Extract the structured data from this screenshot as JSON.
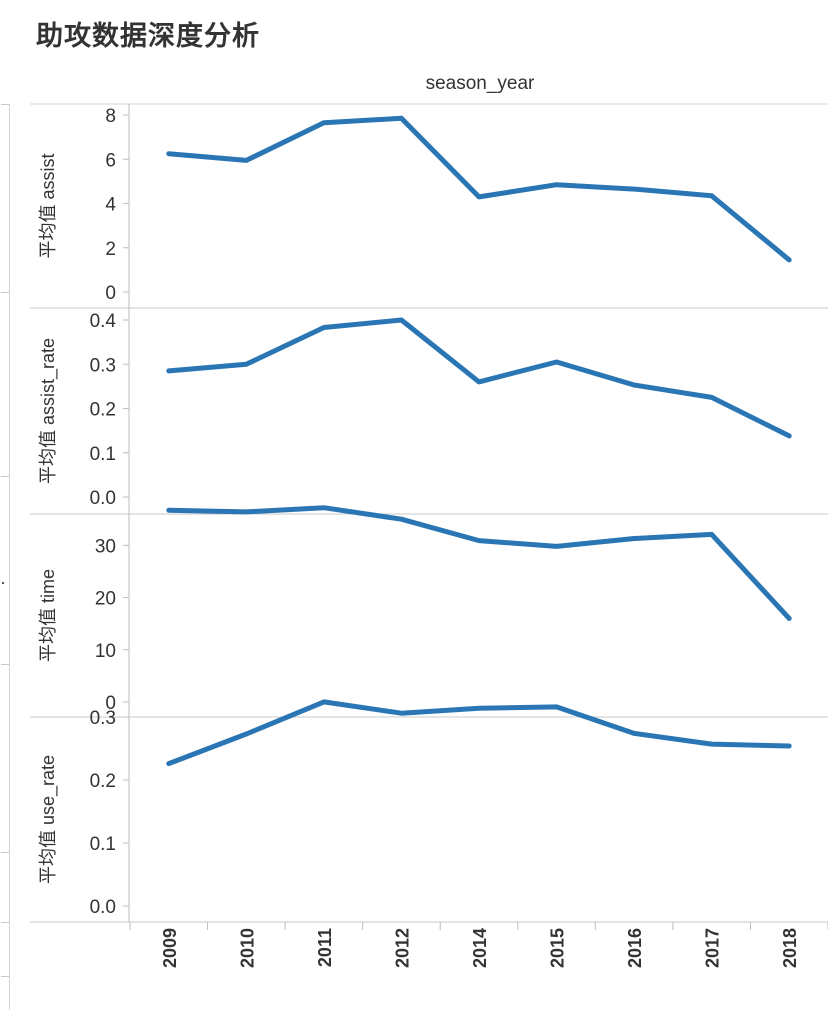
{
  "page": {
    "title": "助攻数据深度分析"
  },
  "chart_data": {
    "type": "line",
    "column_header": "season_year",
    "categories": [
      "2009",
      "2010",
      "2011",
      "2012",
      "2014",
      "2015",
      "2016",
      "2017",
      "2018"
    ],
    "color": "#2a76b4",
    "panels": [
      {
        "ylabel": "平均值 assist",
        "ylim": [
          0,
          8
        ],
        "ticks": [
          "0",
          "2",
          "4",
          "6",
          "8"
        ],
        "tick_values": [
          0,
          2,
          4,
          6,
          8
        ],
        "values": [
          6.25,
          5.95,
          7.65,
          7.85,
          4.3,
          4.85,
          4.65,
          4.35,
          1.45
        ]
      },
      {
        "ylabel": "平均值 assist_rate",
        "ylim": [
          0,
          0.4
        ],
        "ticks": [
          "0.0",
          "0.1",
          "0.2",
          "0.3",
          "0.4"
        ],
        "tick_values": [
          0,
          0.1,
          0.2,
          0.3,
          0.4
        ],
        "values": [
          0.285,
          0.3,
          0.383,
          0.4,
          0.26,
          0.305,
          0.253,
          0.225,
          0.138
        ]
      },
      {
        "ylabel": "平均值 time",
        "ylim": [
          0,
          36
        ],
        "ticks": [
          "0",
          "10",
          "20",
          "30"
        ],
        "tick_values": [
          0,
          10,
          20,
          30
        ],
        "values": [
          36.7,
          36.4,
          37.2,
          35.0,
          30.9,
          29.8,
          31.3,
          32.1,
          16.0
        ]
      },
      {
        "ylabel": "平均值 use_rate",
        "ylim": [
          0,
          0.3
        ],
        "ticks": [
          "0.0",
          "0.1",
          "0.2",
          "0.3"
        ],
        "tick_values": [
          0,
          0.1,
          0.2,
          0.3
        ],
        "values": [
          0.226,
          0.273,
          0.324,
          0.306,
          0.314,
          0.316,
          0.274,
          0.257,
          0.254
        ]
      }
    ]
  }
}
